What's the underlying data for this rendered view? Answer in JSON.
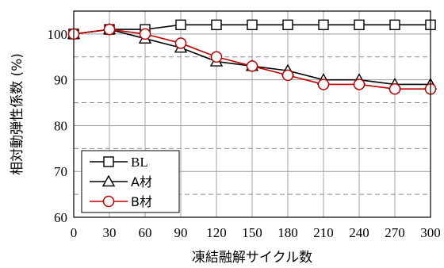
{
  "chart_data": {
    "type": "line",
    "xlabel": "凍結融解サイクル数",
    "ylabel": "相対動弾性係数 (%)",
    "x": [
      0,
      30,
      60,
      90,
      120,
      150,
      180,
      210,
      240,
      270,
      300
    ],
    "xticks": [
      "0",
      "30",
      "60",
      "90",
      "120",
      "150",
      "180",
      "210",
      "240",
      "270",
      "300"
    ],
    "yticks": [
      "60",
      "70",
      "80",
      "90",
      "100"
    ],
    "xlim": [
      0,
      300
    ],
    "ylim": [
      60,
      105
    ],
    "grid": "horizontal dashed every 5",
    "legend_position": "bottom-left",
    "series": [
      {
        "name": "BL",
        "marker": "square",
        "color": "#000000",
        "values": [
          100,
          101,
          101,
          102,
          102,
          102,
          102,
          102,
          102,
          102,
          102
        ]
      },
      {
        "name": "A材",
        "marker": "triangle",
        "color": "#000000",
        "values": [
          100,
          101,
          99,
          97,
          94,
          93,
          92,
          90,
          90,
          89,
          89
        ]
      },
      {
        "name": "B材",
        "marker": "circle",
        "color": "#c00000",
        "values": [
          100,
          101,
          100,
          98,
          95,
          93,
          91,
          89,
          89,
          88,
          88
        ]
      }
    ]
  }
}
